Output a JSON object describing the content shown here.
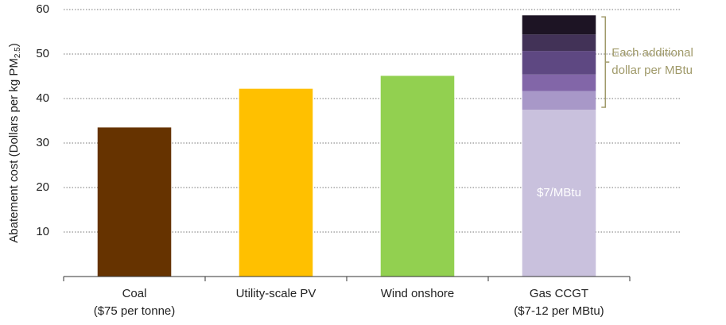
{
  "chart_data": {
    "type": "stacked_bar",
    "y_label": {
      "text": "Abatement cost (Dollars per kg PM",
      "subscript": "2.5",
      "suffix": ")"
    },
    "categories": [
      [
        "Coal",
        "($75 per tonne)"
      ],
      [
        "Utility-scale PV"
      ],
      [
        "Wind onshore"
      ],
      [
        "Gas CCGT",
        "($7-12 per MBtu)"
      ]
    ],
    "series": [
      {
        "colors": [
          "#663300",
          "#ffc000",
          "#92d050",
          "#c9c1dd"
        ],
        "values": [
          33.5,
          42.2,
          45.1,
          37.5
        ]
      },
      {
        "color": "#a898c8",
        "values": [
          null,
          null,
          null,
          4.2
        ]
      },
      {
        "color": "#8266a8",
        "values": [
          null,
          null,
          null,
          3.7
        ]
      },
      {
        "color": "#5e4882",
        "values": [
          null,
          null,
          null,
          5.3
        ]
      },
      {
        "color": "#423257",
        "values": [
          null,
          null,
          null,
          3.7
        ]
      },
      {
        "color": "#1d1424",
        "values": [
          null,
          null,
          null,
          4.3
        ]
      }
    ],
    "annotations": [
      "$7/MBtu"
    ],
    "bracket_text": [
      "Each additional",
      "dollar per MBtu"
    ],
    "bracket_color": "#a09a6a",
    "ylim": [
      0,
      60
    ],
    "yticks": [
      10,
      20,
      30,
      40,
      50,
      60
    ],
    "grid": true
  }
}
